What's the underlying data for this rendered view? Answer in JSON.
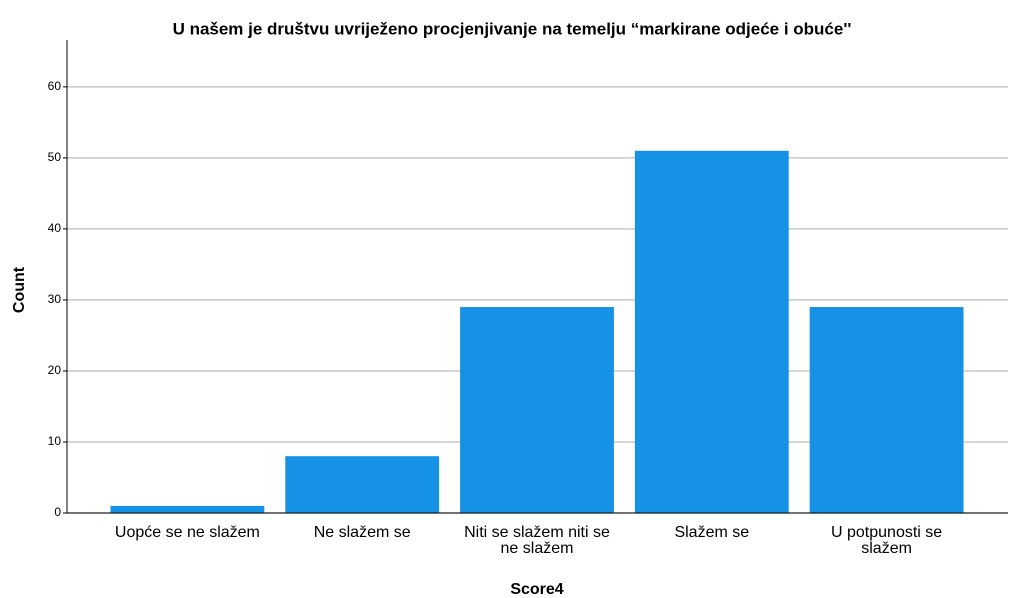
{
  "chart_data": {
    "type": "bar",
    "title": "U našem je društvu uvriježeno procjenjivanje na temelju “markirane odjeće i obuće''",
    "x_label": "Score4",
    "y_label": "Count",
    "categories": [
      "Uopće se ne slažem",
      "Ne slažem se",
      "Niti se slažem niti se ne slažem",
      "Slažem se",
      "U potpunosti se slažem"
    ],
    "values": [
      1,
      8,
      29,
      51,
      29
    ],
    "color": "#1591e6",
    "ylim": [
      0,
      66.6
    ],
    "yticks": [
      0,
      10,
      20,
      30,
      40,
      50,
      60
    ],
    "grid": true
  }
}
